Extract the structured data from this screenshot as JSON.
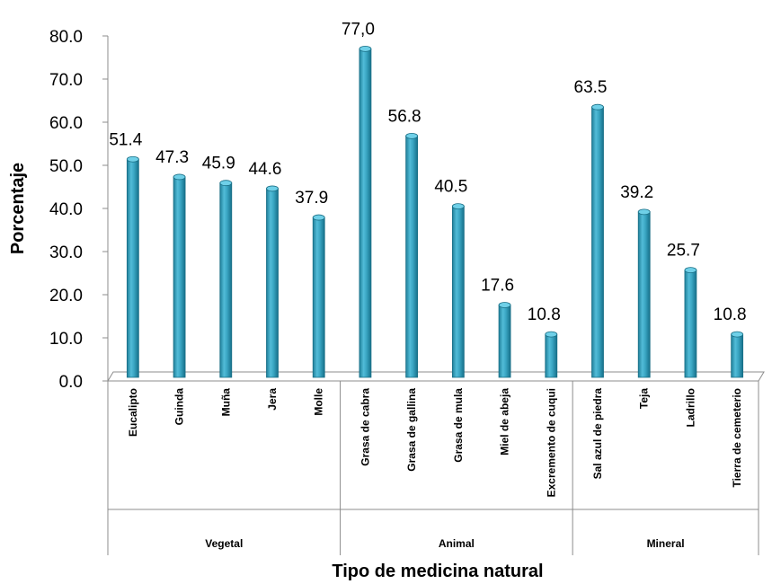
{
  "chart_data": {
    "type": "bar",
    "title": "",
    "xlabel": "Tipo de medicina natural",
    "ylabel": "Porcentaje",
    "ylim": [
      0,
      80
    ],
    "yticks": [
      "0.0",
      "10.0",
      "20.0",
      "30.0",
      "40.0",
      "50.0",
      "60.0",
      "70.0",
      "80.0"
    ],
    "grid": false,
    "legend": "none",
    "bar_color": "#3fa9c6",
    "groups": [
      {
        "name": "Vegetal",
        "categories": [
          "Eucalipto",
          "Guinda",
          "Muña",
          "Jera",
          "Molle"
        ],
        "values": [
          51.4,
          47.3,
          45.9,
          44.6,
          37.9
        ],
        "labels": [
          "51.4",
          "47.3",
          "45.9",
          "44.6",
          "37.9"
        ]
      },
      {
        "name": "Animal",
        "categories": [
          "Grasa de cabra",
          "Grasa de gallina",
          "Grasa de mula",
          "Miel de abeja",
          "Excremento de cuqui"
        ],
        "values": [
          77.0,
          56.8,
          40.5,
          17.6,
          10.8
        ],
        "labels": [
          "77,0",
          "56.8",
          "40.5",
          "17.6",
          "10.8"
        ]
      },
      {
        "name": "Mineral",
        "categories": [
          "Sal azul de piedra",
          "Teja",
          "Ladrillo",
          "Tierra de cemeterio"
        ],
        "values": [
          63.5,
          39.2,
          25.7,
          10.8
        ],
        "labels": [
          "63.5",
          "39.2",
          "25.7",
          "10.8"
        ]
      }
    ]
  }
}
